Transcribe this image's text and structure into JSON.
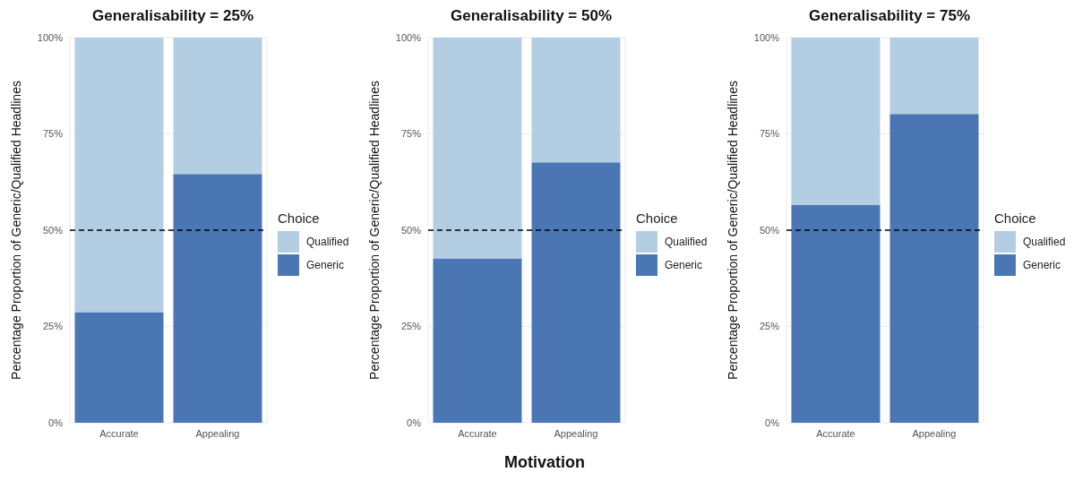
{
  "chart_data": [
    {
      "type": "bar",
      "title": "Generalisability = 25%",
      "ylabel": "Percentage Proportion of Generic/Qualified Headlines",
      "legend_title": "Choice",
      "categories": [
        "Accurate",
        "Appealing"
      ],
      "stacked": true,
      "series": [
        {
          "name": "Generic",
          "color": "#4a77b4",
          "values": [
            28.7,
            64.6
          ]
        },
        {
          "name": "Qualified",
          "color": "#b3cde3",
          "values": [
            71.3,
            35.4
          ]
        }
      ],
      "ylim": [
        0,
        100
      ],
      "yticks": [
        {
          "value": 0,
          "label": "0%"
        },
        {
          "value": 25,
          "label": "25%"
        },
        {
          "value": 50,
          "label": "50%"
        },
        {
          "value": 75,
          "label": "75%"
        },
        {
          "value": 100,
          "label": "100%"
        }
      ],
      "grid": true,
      "legend": "right",
      "ref_lines": [
        {
          "axis": "y",
          "value": 50,
          "color": "#000000",
          "line_style": "dashed"
        }
      ]
    },
    {
      "type": "bar",
      "title": "Generalisability = 50%",
      "xlabel": "Motivation",
      "ylabel": "Percentage Proportion of Generic/Qualified Headlines",
      "legend_title": "Choice",
      "categories": [
        "Accurate",
        "Appealing"
      ],
      "stacked": true,
      "series": [
        {
          "name": "Generic",
          "color": "#4a77b4",
          "values": [
            42.7,
            67.6
          ]
        },
        {
          "name": "Qualified",
          "color": "#b3cde3",
          "values": [
            57.3,
            32.4
          ]
        }
      ],
      "ylim": [
        0,
        100
      ],
      "yticks": [
        {
          "value": 0,
          "label": "0%"
        },
        {
          "value": 25,
          "label": "25%"
        },
        {
          "value": 50,
          "label": "50%"
        },
        {
          "value": 75,
          "label": "75%"
        },
        {
          "value": 100,
          "label": "100%"
        }
      ],
      "grid": true,
      "legend": "right",
      "ref_lines": [
        {
          "axis": "y",
          "value": 50,
          "color": "#000000",
          "line_style": "dashed"
        }
      ]
    },
    {
      "type": "bar",
      "title": "Generalisability = 75%",
      "ylabel": "Percentage Proportion of Generic/Qualified Headlines",
      "legend_title": "Choice",
      "categories": [
        "Accurate",
        "Appealing"
      ],
      "stacked": true,
      "series": [
        {
          "name": "Generic",
          "color": "#4a77b4",
          "values": [
            56.5,
            80.2
          ]
        },
        {
          "name": "Qualified",
          "color": "#b3cde3",
          "values": [
            43.5,
            19.8
          ]
        }
      ],
      "ylim": [
        0,
        100
      ],
      "yticks": [
        {
          "value": 0,
          "label": "0%"
        },
        {
          "value": 25,
          "label": "25%"
        },
        {
          "value": 50,
          "label": "50%"
        },
        {
          "value": 75,
          "label": "75%"
        },
        {
          "value": 100,
          "label": "100%"
        }
      ],
      "grid": true,
      "legend": "right",
      "ref_lines": [
        {
          "axis": "y",
          "value": 50,
          "color": "#000000",
          "line_style": "dashed"
        }
      ]
    }
  ]
}
